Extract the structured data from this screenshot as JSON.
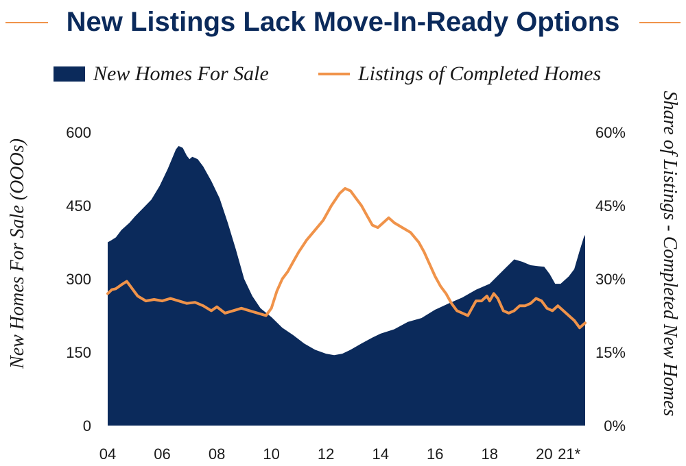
{
  "title": "New Listings Lack Move-In-Ready Options",
  "colors": {
    "area": "#0b2a5b",
    "line": "#f0934a",
    "title": "#0b2a5b",
    "text": "#1a1a1a"
  },
  "legend": {
    "area_label": "New Homes For Sale",
    "line_label": "Listings of Completed Homes"
  },
  "chart_data": {
    "type": "area",
    "title": "New Listings Lack Move-In-Ready Options",
    "ylabel": "New Homes For Sale (OOOs)",
    "y2label": "Share of Listings - Completed New Homes",
    "xlim": [
      2004,
      2021.5
    ],
    "ylim": [
      0,
      600
    ],
    "y2lim": [
      0,
      60
    ],
    "x_ticks": [
      {
        "x": 2004,
        "label": "04"
      },
      {
        "x": 2006,
        "label": "06"
      },
      {
        "x": 2008,
        "label": "08"
      },
      {
        "x": 2010,
        "label": "10"
      },
      {
        "x": 2012,
        "label": "12"
      },
      {
        "x": 2014,
        "label": "14"
      },
      {
        "x": 2016,
        "label": "16"
      },
      {
        "x": 2018,
        "label": "18"
      },
      {
        "x": 2020,
        "label": "20"
      },
      {
        "x": 2021,
        "label": "21*"
      }
    ],
    "y_ticks": [
      {
        "v": 0,
        "label": "0"
      },
      {
        "v": 150,
        "label": "150"
      },
      {
        "v": 300,
        "label": "300"
      },
      {
        "v": 450,
        "label": "450"
      },
      {
        "v": 600,
        "label": "600"
      }
    ],
    "y2_ticks": [
      {
        "v": 0,
        "label": "0%"
      },
      {
        "v": 15,
        "label": "15%"
      },
      {
        "v": 30,
        "label": "30%"
      },
      {
        "v": 45,
        "label": "45%"
      },
      {
        "v": 60,
        "label": "60%"
      }
    ],
    "series": [
      {
        "name": "New Homes For Sale",
        "kind": "area",
        "axis": "left",
        "points": [
          [
            2004.0,
            375
          ],
          [
            2004.1,
            378
          ],
          [
            2004.3,
            385
          ],
          [
            2004.5,
            400
          ],
          [
            2004.8,
            415
          ],
          [
            2005.0,
            428
          ],
          [
            2005.3,
            445
          ],
          [
            2005.6,
            462
          ],
          [
            2005.9,
            490
          ],
          [
            2006.2,
            525
          ],
          [
            2006.5,
            565
          ],
          [
            2006.6,
            572
          ],
          [
            2006.75,
            568
          ],
          [
            2006.9,
            552
          ],
          [
            2007.0,
            545
          ],
          [
            2007.1,
            550
          ],
          [
            2007.3,
            545
          ],
          [
            2007.5,
            530
          ],
          [
            2007.8,
            500
          ],
          [
            2008.1,
            465
          ],
          [
            2008.4,
            415
          ],
          [
            2008.7,
            360
          ],
          [
            2009.0,
            300
          ],
          [
            2009.3,
            265
          ],
          [
            2009.6,
            240
          ],
          [
            2010.0,
            222
          ],
          [
            2010.4,
            200
          ],
          [
            2010.8,
            185
          ],
          [
            2011.2,
            168
          ],
          [
            2011.6,
            155
          ],
          [
            2012.0,
            147
          ],
          [
            2012.3,
            144
          ],
          [
            2012.6,
            147
          ],
          [
            2012.9,
            155
          ],
          [
            2013.3,
            168
          ],
          [
            2013.7,
            180
          ],
          [
            2014.0,
            188
          ],
          [
            2014.5,
            197
          ],
          [
            2015.0,
            212
          ],
          [
            2015.5,
            220
          ],
          [
            2016.0,
            237
          ],
          [
            2016.5,
            250
          ],
          [
            2017.0,
            262
          ],
          [
            2017.5,
            278
          ],
          [
            2018.0,
            290
          ],
          [
            2018.5,
            318
          ],
          [
            2018.9,
            340
          ],
          [
            2019.2,
            335
          ],
          [
            2019.5,
            328
          ],
          [
            2019.8,
            326
          ],
          [
            2020.0,
            325
          ],
          [
            2020.2,
            310
          ],
          [
            2020.4,
            290
          ],
          [
            2020.6,
            290
          ],
          [
            2020.9,
            305
          ],
          [
            2021.1,
            320
          ],
          [
            2021.3,
            358
          ],
          [
            2021.45,
            385
          ],
          [
            2021.5,
            390
          ]
        ]
      },
      {
        "name": "Listings of Completed Homes",
        "kind": "line",
        "axis": "right",
        "points": [
          [
            2004.0,
            27.0
          ],
          [
            2004.15,
            27.8
          ],
          [
            2004.3,
            28.0
          ],
          [
            2004.5,
            28.8
          ],
          [
            2004.7,
            29.5
          ],
          [
            2004.9,
            28.0
          ],
          [
            2005.1,
            26.5
          ],
          [
            2005.4,
            25.5
          ],
          [
            2005.7,
            25.8
          ],
          [
            2006.0,
            25.5
          ],
          [
            2006.3,
            26.0
          ],
          [
            2006.6,
            25.5
          ],
          [
            2006.9,
            25.0
          ],
          [
            2007.2,
            25.2
          ],
          [
            2007.5,
            24.5
          ],
          [
            2007.8,
            23.5
          ],
          [
            2008.0,
            24.3
          ],
          [
            2008.3,
            23.0
          ],
          [
            2008.6,
            23.5
          ],
          [
            2008.9,
            24.0
          ],
          [
            2009.2,
            23.5
          ],
          [
            2009.5,
            23.0
          ],
          [
            2009.8,
            22.5
          ],
          [
            2010.0,
            24.0
          ],
          [
            2010.2,
            27.5
          ],
          [
            2010.4,
            30.0
          ],
          [
            2010.6,
            31.5
          ],
          [
            2010.8,
            33.5
          ],
          [
            2011.0,
            35.5
          ],
          [
            2011.3,
            38.0
          ],
          [
            2011.6,
            40.0
          ],
          [
            2011.9,
            42.0
          ],
          [
            2012.2,
            45.0
          ],
          [
            2012.5,
            47.5
          ],
          [
            2012.7,
            48.5
          ],
          [
            2012.9,
            48.0
          ],
          [
            2013.1,
            46.5
          ],
          [
            2013.3,
            45.0
          ],
          [
            2013.5,
            43.0
          ],
          [
            2013.7,
            41.0
          ],
          [
            2013.9,
            40.5
          ],
          [
            2014.1,
            41.5
          ],
          [
            2014.3,
            42.5
          ],
          [
            2014.5,
            41.5
          ],
          [
            2014.8,
            40.5
          ],
          [
            2015.1,
            39.5
          ],
          [
            2015.4,
            37.5
          ],
          [
            2015.6,
            35.5
          ],
          [
            2015.8,
            33.0
          ],
          [
            2016.0,
            30.5
          ],
          [
            2016.2,
            28.5
          ],
          [
            2016.4,
            27.0
          ],
          [
            2016.6,
            25.0
          ],
          [
            2016.8,
            23.5
          ],
          [
            2017.0,
            23.0
          ],
          [
            2017.2,
            22.5
          ],
          [
            2017.35,
            24.0
          ],
          [
            2017.5,
            25.5
          ],
          [
            2017.7,
            25.5
          ],
          [
            2017.9,
            26.5
          ],
          [
            2018.0,
            25.5
          ],
          [
            2018.15,
            27.0
          ],
          [
            2018.3,
            26.0
          ],
          [
            2018.5,
            23.5
          ],
          [
            2018.7,
            23.0
          ],
          [
            2018.9,
            23.5
          ],
          [
            2019.1,
            24.5
          ],
          [
            2019.3,
            24.5
          ],
          [
            2019.5,
            25.0
          ],
          [
            2019.7,
            26.0
          ],
          [
            2019.9,
            25.5
          ],
          [
            2020.1,
            24.0
          ],
          [
            2020.3,
            23.5
          ],
          [
            2020.5,
            24.5
          ],
          [
            2020.7,
            23.5
          ],
          [
            2020.9,
            22.5
          ],
          [
            2021.1,
            21.5
          ],
          [
            2021.3,
            20.0
          ],
          [
            2021.5,
            21.0
          ]
        ]
      }
    ]
  }
}
